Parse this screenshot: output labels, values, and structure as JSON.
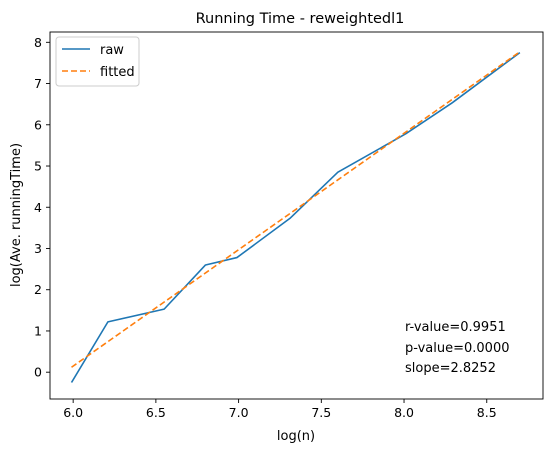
{
  "chart_data": {
    "type": "line",
    "title": "Running Time - reweightedl1",
    "xlabel": "log(n)",
    "ylabel": "log(Ave. runningTime)",
    "xlim": [
      5.86,
      8.84
    ],
    "ylim": [
      -0.65,
      8.25
    ],
    "xticks": [
      6.0,
      6.5,
      7.0,
      7.5,
      8.0,
      8.5
    ],
    "xtick_labels": [
      "6.0",
      "6.5",
      "7.0",
      "7.5",
      "8.0",
      "8.5"
    ],
    "yticks": [
      0,
      1,
      2,
      3,
      4,
      5,
      6,
      7,
      8
    ],
    "ytick_labels": [
      "0",
      "1",
      "2",
      "3",
      "4",
      "5",
      "6",
      "7",
      "8"
    ],
    "grid": false,
    "legend_position": "top-left",
    "series": [
      {
        "name": "raw",
        "style": "solid",
        "color": "#1f77b4",
        "x": [
          5.99,
          6.21,
          6.55,
          6.8,
          6.99,
          7.31,
          7.6,
          8.01,
          8.29,
          8.7
        ],
        "y": [
          -0.25,
          1.22,
          1.53,
          2.6,
          2.78,
          3.73,
          4.85,
          5.78,
          6.53,
          7.75
        ]
      },
      {
        "name": "fitted",
        "style": "dashed",
        "color": "#ff7f0e",
        "x": [
          5.99,
          8.7
        ],
        "y": [
          0.12,
          7.77
        ]
      }
    ],
    "annotations": [
      "r-value=0.9951",
      "p-value=0.0000",
      "slope=2.8252"
    ]
  }
}
